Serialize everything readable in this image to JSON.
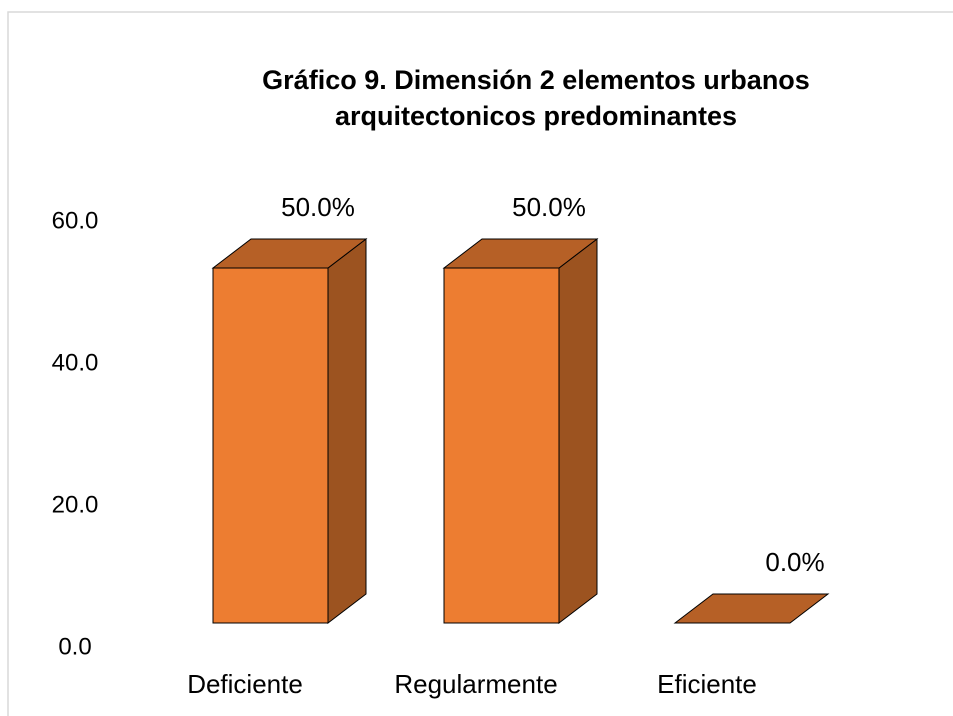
{
  "chart_data": {
    "type": "bar3d",
    "title": [
      "Gráfico 9. Dimensión 2 elementos urbanos",
      "arquitectonicos predominantes"
    ],
    "categories": [
      "Deficiente",
      "Regularmente",
      "Eficiente"
    ],
    "values": [
      50,
      50,
      0
    ],
    "value_labels": [
      "50.0%",
      "50.0%",
      "0.0%"
    ],
    "color": "#ED7D31",
    "ylim": [
      0,
      60
    ],
    "yticks": [
      {
        "value": 0,
        "label": "0.0"
      },
      {
        "value": 20,
        "label": "20.0"
      },
      {
        "value": 40,
        "label": "40.0"
      },
      {
        "value": 60,
        "label": "60.0"
      }
    ],
    "grid": false
  }
}
